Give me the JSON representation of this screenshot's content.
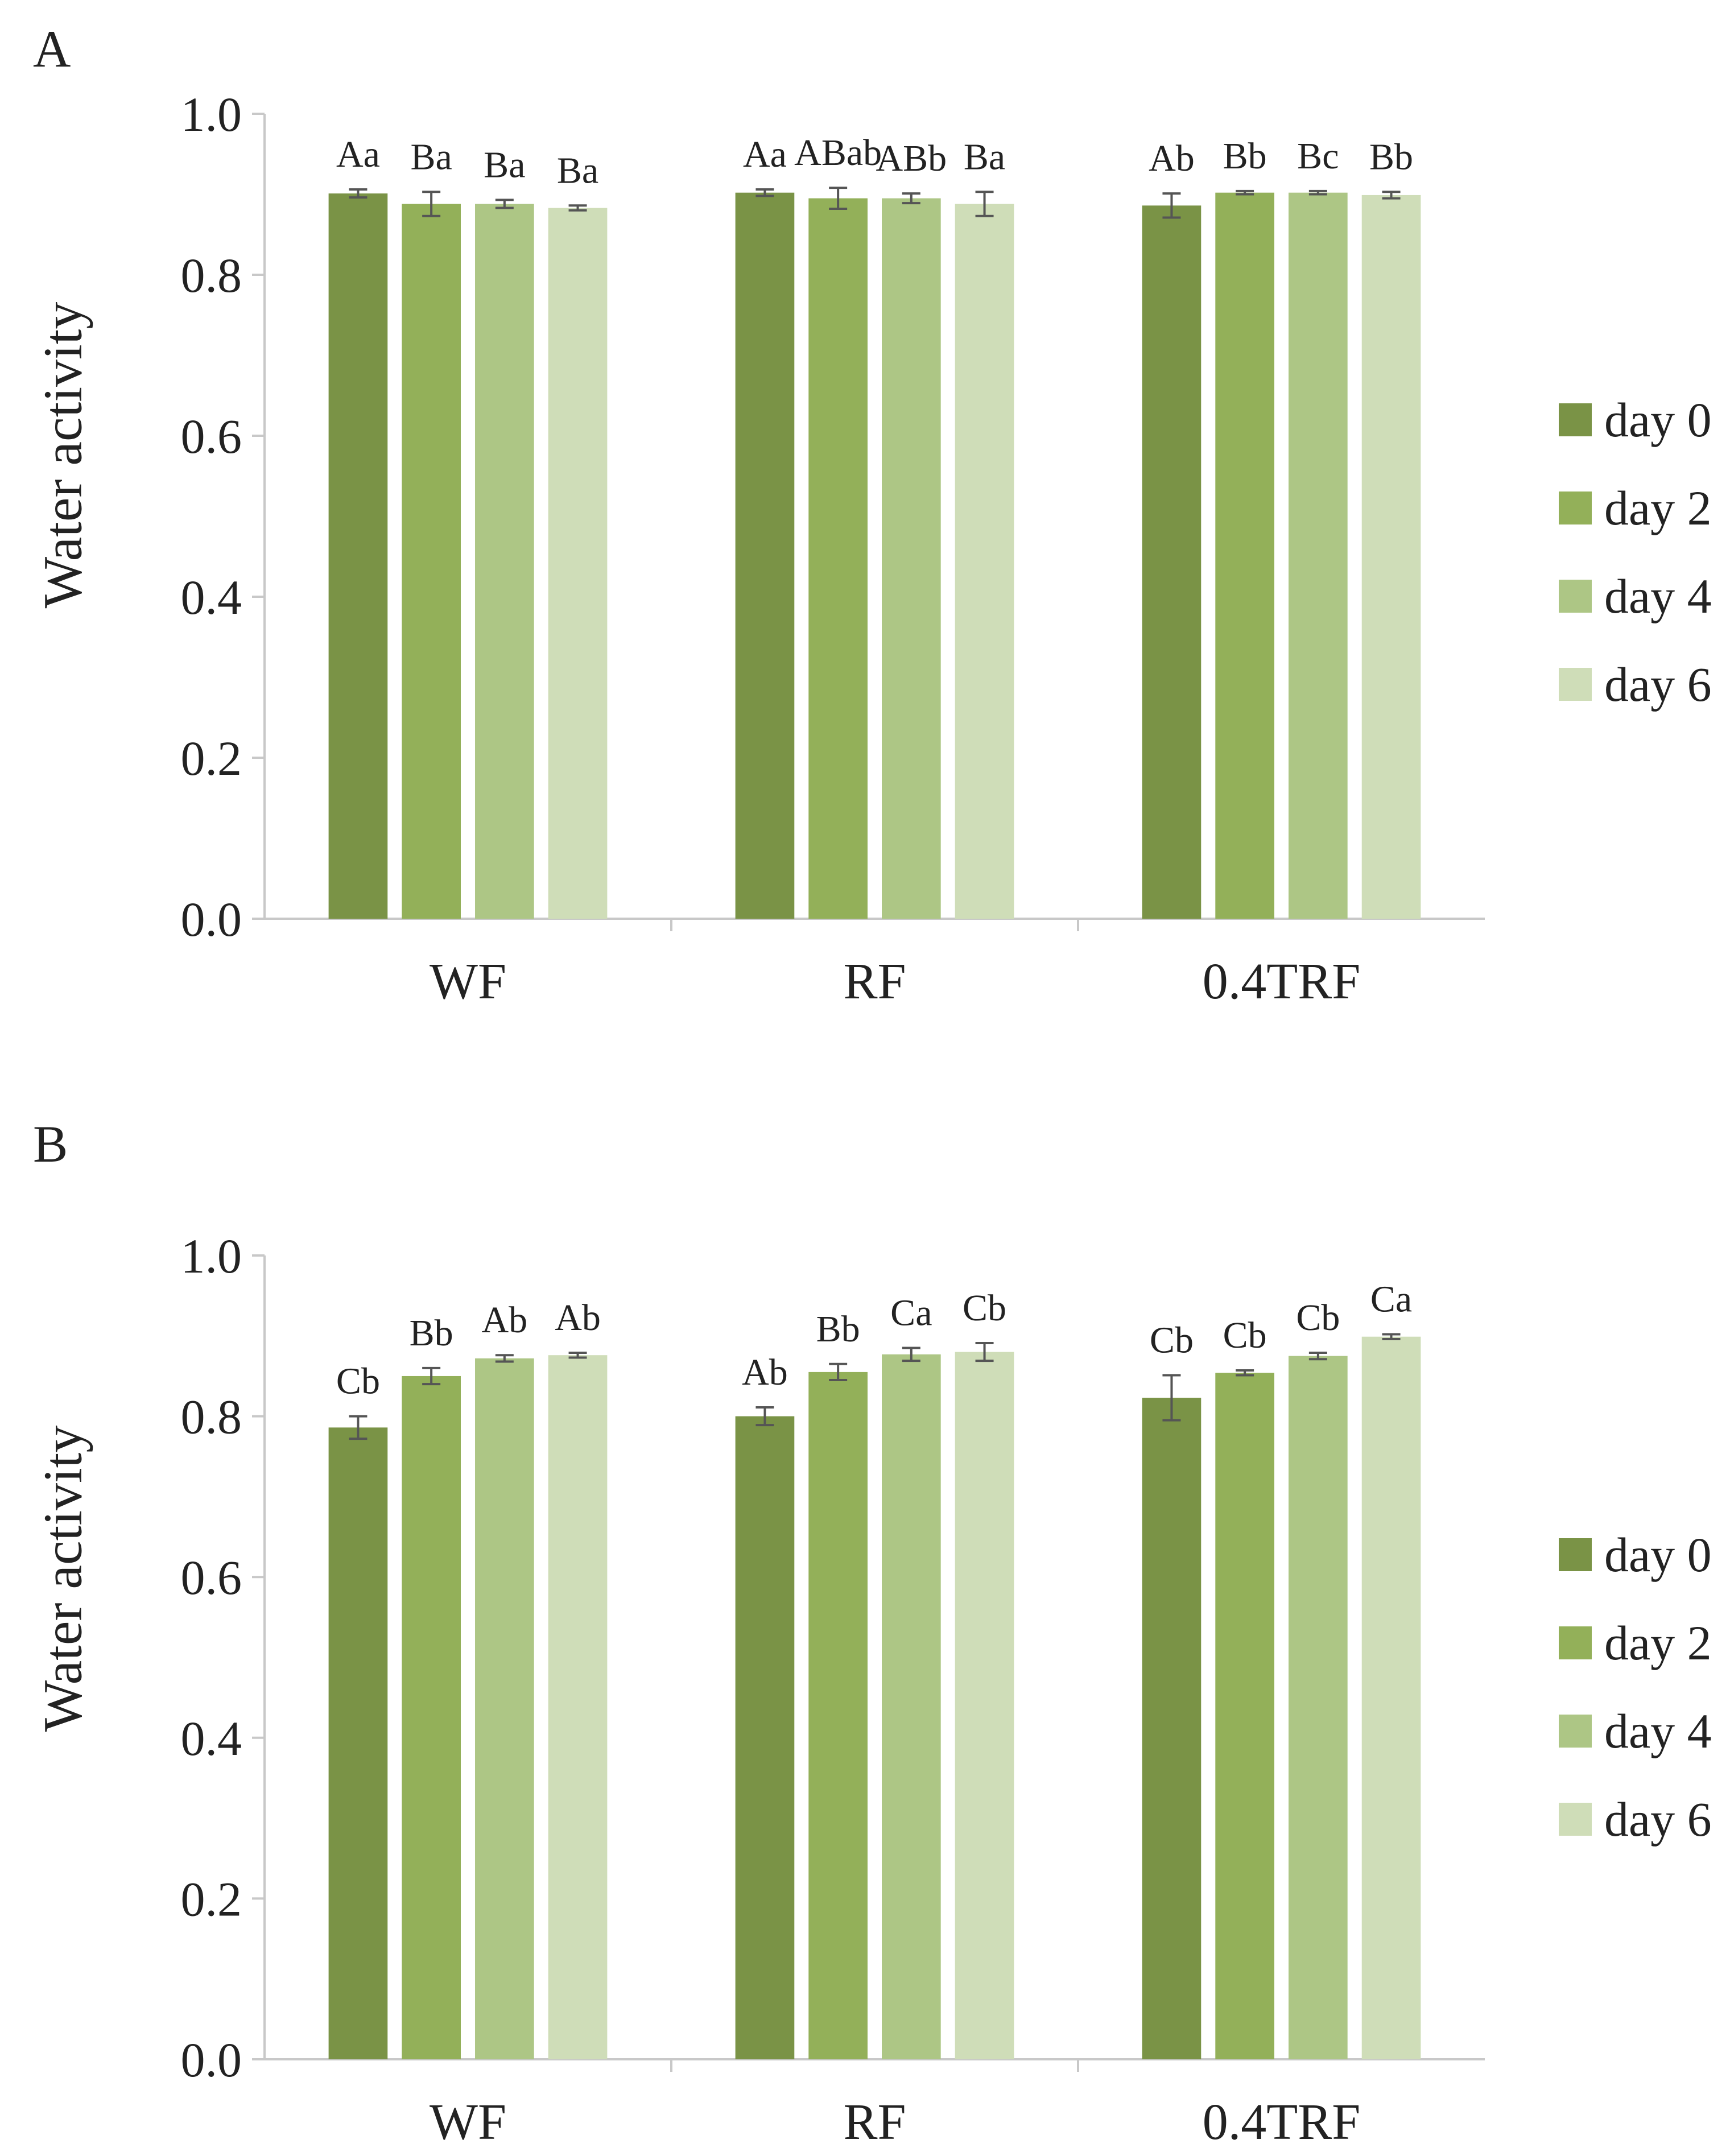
{
  "colors": {
    "day0": "#7a9346",
    "day2": "#93b059",
    "day4": "#adc685",
    "day6": "#cfddb8",
    "axis": "#c8c8c8",
    "errbar": "#555555"
  },
  "chart_data": [
    {
      "panel": "A",
      "type": "bar",
      "title": "",
      "xlabel": "",
      "ylabel": "Water activity",
      "ylim": [
        0,
        1.0
      ],
      "yticks": [
        "0.0",
        "0.2",
        "0.4",
        "0.6",
        "0.8",
        "1.0"
      ],
      "categories": [
        "WF",
        "RF",
        "0.4TRF"
      ],
      "legend_position": "right",
      "series": [
        {
          "name": "day 0",
          "values": [
            0.901,
            0.902,
            0.886
          ],
          "errors": [
            0.005,
            0.004,
            0.015
          ],
          "labels": [
            "Aa",
            "Aa",
            "Ab"
          ]
        },
        {
          "name": "day 2",
          "values": [
            0.888,
            0.895,
            0.902
          ],
          "errors": [
            0.015,
            0.013,
            0.002
          ],
          "labels": [
            "Ba",
            "ABab",
            "Bb"
          ]
        },
        {
          "name": "day 4",
          "values": [
            0.888,
            0.895,
            0.902
          ],
          "errors": [
            0.005,
            0.006,
            0.002
          ],
          "labels": [
            "Ba",
            "ABb",
            "Bc"
          ]
        },
        {
          "name": "day 6",
          "values": [
            0.883,
            0.888,
            0.899
          ],
          "errors": [
            0.003,
            0.015,
            0.004
          ],
          "labels": [
            "Ba",
            "Ba",
            "Bb"
          ]
        }
      ]
    },
    {
      "panel": "B",
      "type": "bar",
      "title": "",
      "xlabel": "",
      "ylabel": "Water activity",
      "ylim": [
        0,
        1.0
      ],
      "yticks": [
        "0.0",
        "0.2",
        "0.4",
        "0.6",
        "0.8",
        "1.0"
      ],
      "categories": [
        "WF",
        "RF",
        "0.4TRF"
      ],
      "legend_position": "right",
      "series": [
        {
          "name": "day 0",
          "values": [
            0.786,
            0.8,
            0.823
          ],
          "errors": [
            0.014,
            0.011,
            0.028
          ],
          "labels": [
            "Cb",
            "Ab",
            "Cb"
          ]
        },
        {
          "name": "day 2",
          "values": [
            0.85,
            0.855,
            0.854
          ],
          "errors": [
            0.01,
            0.01,
            0.003
          ],
          "labels": [
            "Bb",
            "Bb",
            "Cb"
          ]
        },
        {
          "name": "day 4",
          "values": [
            0.872,
            0.877,
            0.875
          ],
          "errors": [
            0.004,
            0.008,
            0.004
          ],
          "labels": [
            "Ab",
            "Ca",
            "Cb"
          ]
        },
        {
          "name": "day 6",
          "values": [
            0.876,
            0.88,
            0.899
          ],
          "errors": [
            0.003,
            0.011,
            0.003
          ],
          "labels": [
            "Ab",
            "Cb",
            "Ca"
          ]
        }
      ]
    }
  ],
  "panel_labels": [
    "A",
    "B"
  ]
}
